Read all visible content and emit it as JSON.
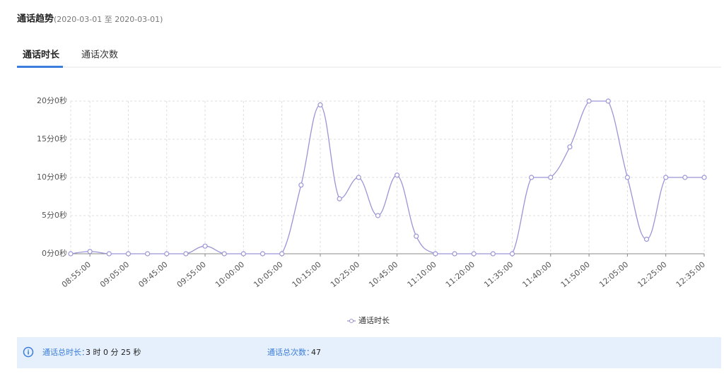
{
  "header": {
    "title": "通话趋势",
    "range": "(2020-03-01 至 2020-03-01)"
  },
  "tabs": [
    "通话时长",
    "通话次数"
  ],
  "chart_data": {
    "type": "line",
    "categories": [
      null,
      "08:55:00",
      null,
      "09:05:00",
      null,
      "09:45:00",
      null,
      "09:55:00",
      null,
      "10:00:00",
      null,
      "10:05:00",
      null,
      "10:15:00",
      null,
      "10:25:00",
      null,
      "10:45:00",
      null,
      "11:10:00",
      null,
      "11:20:00",
      null,
      "11:35:00",
      null,
      "11:40:00",
      null,
      "11:50:00",
      null,
      "12:05:00",
      null,
      "12:25:00",
      null,
      "12:35:00"
    ],
    "series": [
      {
        "name": "通话时长",
        "color": "#9b95d6",
        "values": [
          0,
          0.3,
          0,
          0,
          0,
          0,
          0,
          1,
          0,
          0,
          0,
          0,
          9,
          19.5,
          7.2,
          10,
          5,
          10.3,
          2.3,
          0,
          0,
          0,
          0,
          0,
          10,
          10,
          14,
          20,
          20,
          10,
          1.9,
          10,
          10,
          10
        ]
      }
    ],
    "ylim": [
      0,
      20
    ],
    "yticks": [
      {
        "value": 0,
        "label": "0分0秒"
      },
      {
        "value": 5,
        "label": "5分0秒"
      },
      {
        "value": 10,
        "label": "10分0秒"
      },
      {
        "value": 15,
        "label": "15分0秒"
      },
      {
        "value": 20,
        "label": "20分0秒"
      }
    ],
    "grid": true
  },
  "summary": {
    "duration_label": "通话总时长：",
    "duration": "3 时 0 分 25 秒",
    "count_label": "通话总次数：",
    "count": "47"
  }
}
